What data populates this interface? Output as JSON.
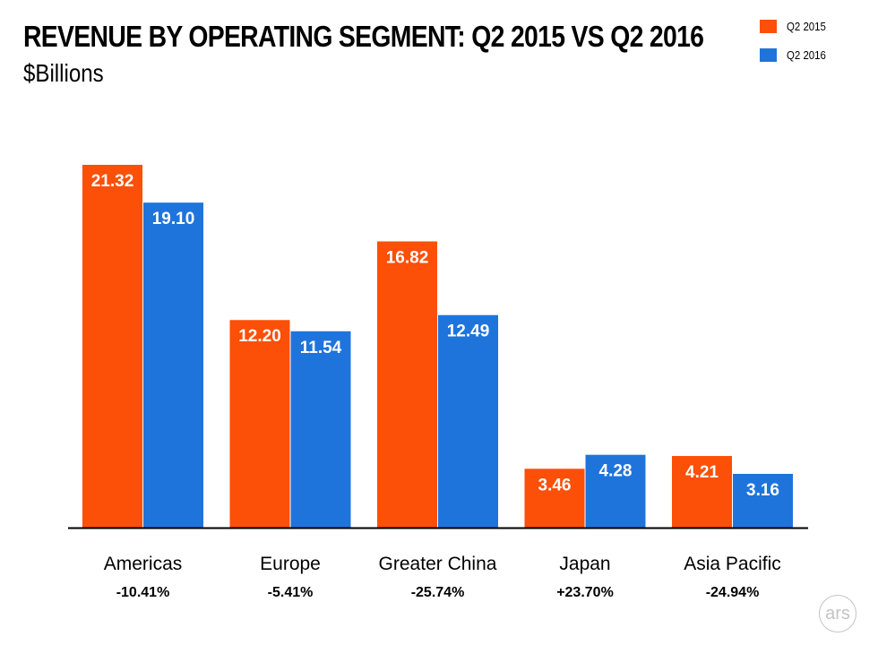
{
  "title": "REVENUE BY OPERATING SEGMENT: Q2 2015 VS Q2 2016",
  "subtitle": "$Billions",
  "logo_text": "ars",
  "colors": {
    "q2_2015": "#fc4f08",
    "q2_2016": "#1f74dc",
    "axis": "#000000"
  },
  "chart_data": {
    "type": "bar",
    "title": "REVENUE BY OPERATING SEGMENT: Q2 2015 VS Q2 2016",
    "subtitle": "$Billions",
    "categories": [
      "Americas",
      "Europe",
      "Greater China",
      "Japan",
      "Asia Pacific"
    ],
    "changes": [
      "-10.41%",
      "-5.41%",
      "-25.74%",
      "+23.70%",
      "-24.94%"
    ],
    "series": [
      {
        "name": "Q2 2015",
        "values": [
          21.32,
          12.2,
          16.82,
          3.46,
          4.21
        ],
        "labels": [
          "21.32",
          "12.20",
          "16.82",
          "3.46",
          "4.21"
        ]
      },
      {
        "name": "Q2 2016",
        "values": [
          19.1,
          11.54,
          12.49,
          4.28,
          3.16
        ],
        "labels": [
          "19.10",
          "11.54",
          "12.49",
          "4.28",
          "3.16"
        ]
      }
    ],
    "ylim": [
      0,
      21.32
    ],
    "grid": false,
    "legend_position": "top-right"
  }
}
